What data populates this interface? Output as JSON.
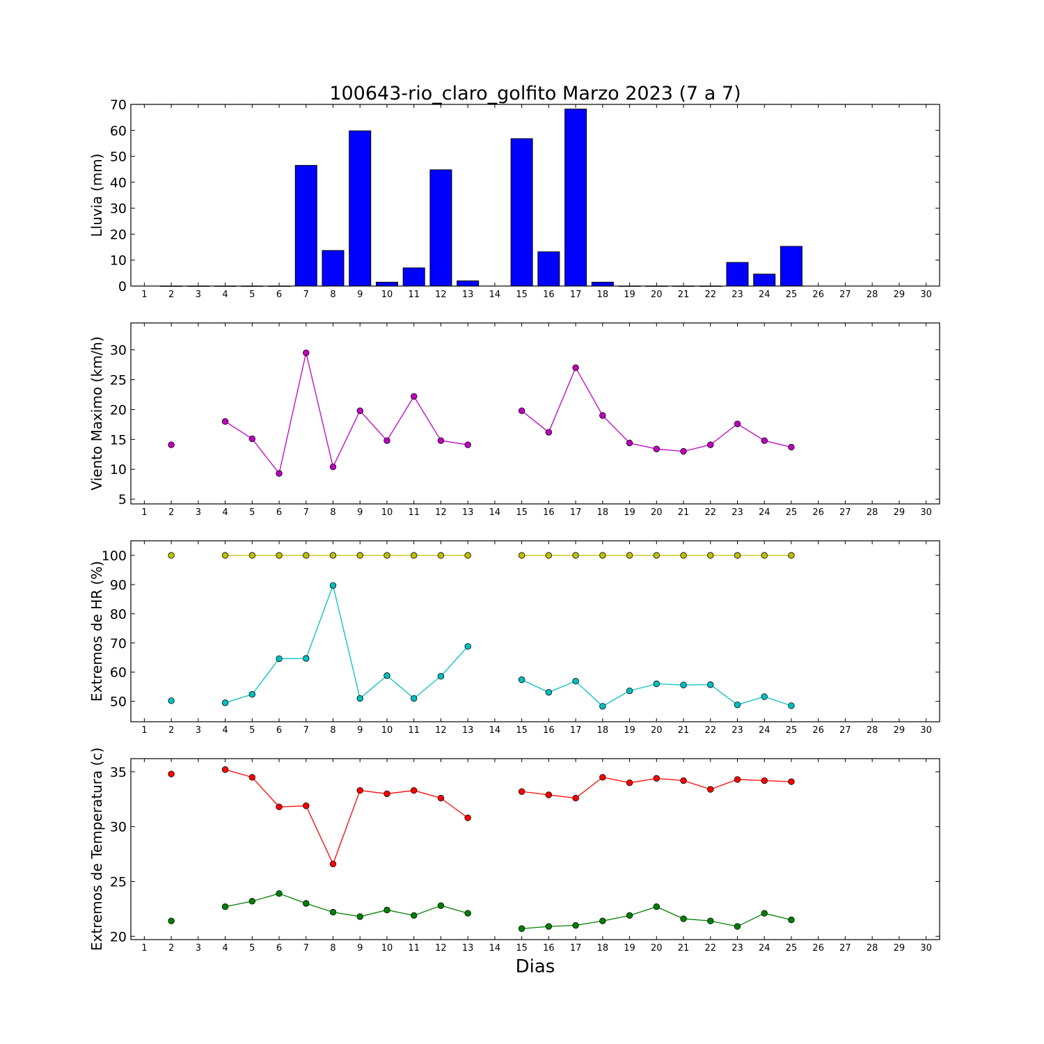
{
  "chart_data": [
    {
      "type": "bar",
      "title": "100643-rio_claro_golfito Marzo 2023  (7 a 7)",
      "ylabel": "Lluvia (mm)",
      "xlabel": "",
      "x": [
        1,
        2,
        3,
        4,
        5,
        6,
        7,
        8,
        9,
        10,
        11,
        12,
        13,
        14,
        15,
        16,
        17,
        18,
        19,
        20,
        21,
        22,
        23,
        24,
        25,
        26,
        27,
        28,
        29,
        30
      ],
      "xlim": [
        0.5,
        30.5
      ],
      "ylim": [
        0,
        70
      ],
      "yticks": [
        0,
        10,
        20,
        30,
        40,
        50,
        60,
        70
      ],
      "grid": false,
      "series": [
        {
          "color": "#0000ff",
          "values": [
            null,
            0,
            0,
            0,
            0,
            0,
            46.5,
            13.7,
            59.8,
            1.5,
            7.0,
            44.8,
            2.0,
            null,
            56.8,
            13.2,
            68.2,
            1.5,
            0,
            0,
            0,
            0,
            9.1,
            4.6,
            15.3,
            null,
            null,
            null,
            null,
            null
          ]
        }
      ]
    },
    {
      "type": "line",
      "ylabel": "Viento Maximo (km/h)",
      "xlabel": "",
      "x": [
        1,
        2,
        3,
        4,
        5,
        6,
        7,
        8,
        9,
        10,
        11,
        12,
        13,
        14,
        15,
        16,
        17,
        18,
        19,
        20,
        21,
        22,
        23,
        24,
        25,
        26,
        27,
        28,
        29,
        30
      ],
      "xlim": [
        0.5,
        30.5
      ],
      "ylim": [
        4.2,
        34.5
      ],
      "yticks": [
        5,
        10,
        15,
        20,
        25,
        30
      ],
      "grid": false,
      "series": [
        {
          "color": "#bf00bf",
          "values": [
            null,
            14.1,
            null,
            18.0,
            15.1,
            9.3,
            29.5,
            10.4,
            19.8,
            14.8,
            22.2,
            14.8,
            14.1,
            null,
            19.8,
            16.2,
            27.0,
            19.0,
            14.4,
            13.4,
            13.0,
            14.1,
            17.6,
            14.8,
            13.7,
            null,
            null,
            null,
            null,
            null
          ]
        }
      ]
    },
    {
      "type": "line",
      "ylabel": "Extremos de HR (%)",
      "xlabel": "",
      "x": [
        1,
        2,
        3,
        4,
        5,
        6,
        7,
        8,
        9,
        10,
        11,
        12,
        13,
        14,
        15,
        16,
        17,
        18,
        19,
        20,
        21,
        22,
        23,
        24,
        25,
        26,
        27,
        28,
        29,
        30
      ],
      "xlim": [
        0.5,
        30.5
      ],
      "ylim": [
        43,
        105
      ],
      "yticks": [
        50,
        60,
        70,
        80,
        90,
        100
      ],
      "grid": false,
      "series": [
        {
          "color": "#bfbf00",
          "values": [
            null,
            100,
            null,
            100,
            100,
            100,
            100,
            100,
            100,
            100,
            100,
            100,
            100,
            null,
            100,
            100,
            100,
            100,
            100,
            100,
            100,
            100,
            100,
            100,
            100,
            null,
            null,
            null,
            null,
            null
          ]
        },
        {
          "color": "#00bfbf",
          "values": [
            null,
            50.2,
            null,
            49.5,
            52.4,
            64.6,
            64.7,
            89.7,
            51.0,
            58.8,
            51.0,
            58.6,
            68.8,
            null,
            57.4,
            53.1,
            56.9,
            48.3,
            53.6,
            56.0,
            55.6,
            55.7,
            48.8,
            51.6,
            48.5,
            null,
            null,
            null,
            null,
            null
          ]
        }
      ]
    },
    {
      "type": "line",
      "ylabel": "Extremos de Temperatura (c)",
      "xlabel": "Dias",
      "x": [
        1,
        2,
        3,
        4,
        5,
        6,
        7,
        8,
        9,
        10,
        11,
        12,
        13,
        14,
        15,
        16,
        17,
        18,
        19,
        20,
        21,
        22,
        23,
        24,
        25,
        26,
        27,
        28,
        29,
        30
      ],
      "xlim": [
        0.5,
        30.5
      ],
      "ylim": [
        19.7,
        36.2
      ],
      "yticks": [
        20,
        25,
        30,
        35
      ],
      "grid": false,
      "series": [
        {
          "color": "#ff0000",
          "values": [
            null,
            34.8,
            null,
            35.2,
            34.5,
            31.8,
            31.9,
            26.6,
            33.3,
            33.0,
            33.3,
            32.6,
            30.8,
            null,
            33.2,
            32.9,
            32.6,
            34.5,
            34.0,
            34.4,
            34.2,
            33.4,
            34.3,
            34.2,
            34.1,
            null,
            null,
            null,
            null,
            null
          ]
        },
        {
          "color": "#008000",
          "values": [
            null,
            21.4,
            null,
            22.7,
            23.2,
            23.9,
            23.0,
            22.2,
            21.8,
            22.4,
            21.9,
            22.8,
            22.1,
            null,
            20.7,
            20.9,
            21.0,
            21.4,
            21.9,
            22.7,
            21.6,
            21.4,
            20.9,
            22.1,
            21.5,
            null,
            null,
            null,
            null,
            null
          ]
        }
      ]
    }
  ]
}
